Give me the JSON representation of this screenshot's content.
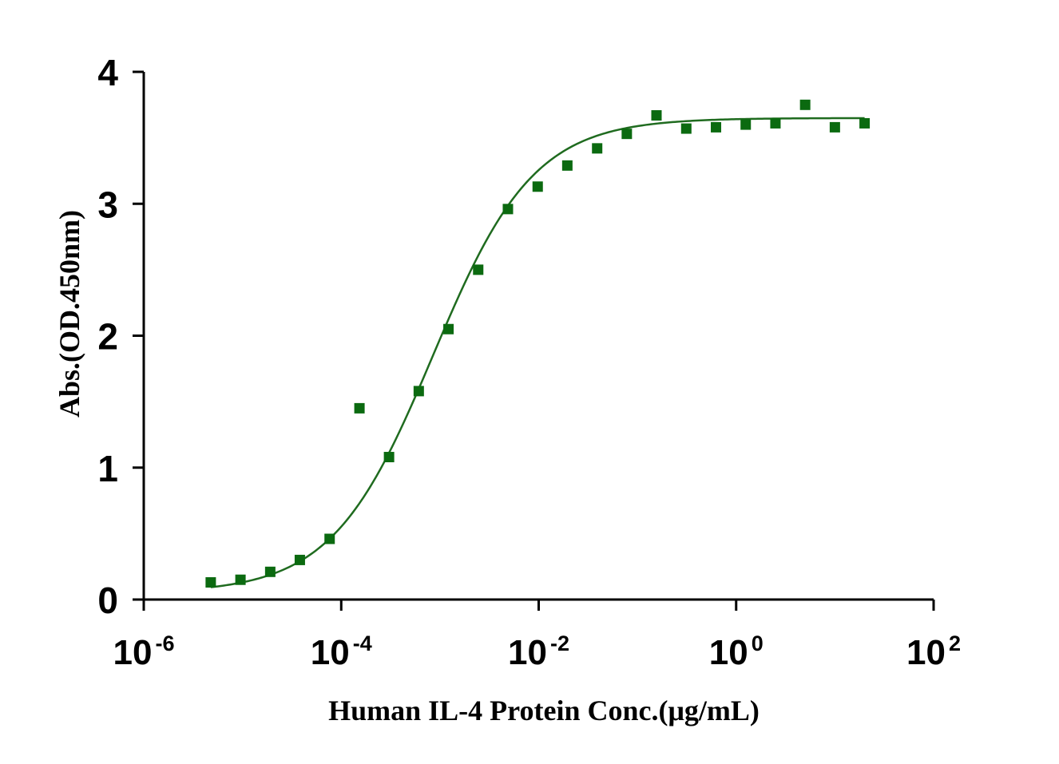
{
  "chart_data": {
    "type": "scatter",
    "xlabel": "Human IL-4 Protein Conc.(μg/mL)",
    "ylabel": "Abs.(OD.450nm)",
    "xscale": "log",
    "xlim": [
      1e-06,
      100
    ],
    "ylim": [
      0,
      4
    ],
    "x_ticks": [
      {
        "base": "10",
        "exp": "-6"
      },
      {
        "base": "10",
        "exp": "-4"
      },
      {
        "base": "10",
        "exp": "-2"
      },
      {
        "base": "10",
        "exp": "0"
      },
      {
        "base": "10",
        "exp": "2"
      }
    ],
    "x_tick_values": [
      1e-06,
      0.0001,
      0.01,
      1,
      100
    ],
    "y_ticks": [
      "0",
      "1",
      "2",
      "3",
      "4"
    ],
    "y_tick_values": [
      0,
      1,
      2,
      3,
      4
    ],
    "grid": false,
    "colors": {
      "marker": "#0b6a10",
      "curve": "#1f6b1f",
      "axis": "#000000"
    },
    "series": [
      {
        "points": [
          [
            4.77e-06,
            0.13
          ],
          [
            9.54e-06,
            0.15
          ],
          [
            1.91e-05,
            0.21
          ],
          [
            3.81e-05,
            0.3
          ],
          [
            7.63e-05,
            0.46
          ],
          [
            0.000153,
            1.45
          ],
          [
            0.000305,
            1.08
          ],
          [
            0.00061,
            1.58
          ],
          [
            0.00122,
            2.05
          ],
          [
            0.00244,
            2.5
          ],
          [
            0.00488,
            2.96
          ],
          [
            0.00977,
            3.13
          ],
          [
            0.0195,
            3.29
          ],
          [
            0.0391,
            3.42
          ],
          [
            0.0781,
            3.53
          ],
          [
            0.156,
            3.67
          ],
          [
            0.3125,
            3.57
          ],
          [
            0.625,
            3.58
          ],
          [
            1.25,
            3.6
          ],
          [
            2.5,
            3.61
          ],
          [
            5,
            3.75
          ],
          [
            10,
            3.58
          ],
          [
            20,
            3.61
          ]
        ]
      }
    ],
    "fit": {
      "model": "4PL",
      "bottom": 0.05,
      "top": 3.65,
      "ec50": 0.00085,
      "hill": 0.85,
      "x_range": [
        4.77e-06,
        20
      ]
    }
  }
}
